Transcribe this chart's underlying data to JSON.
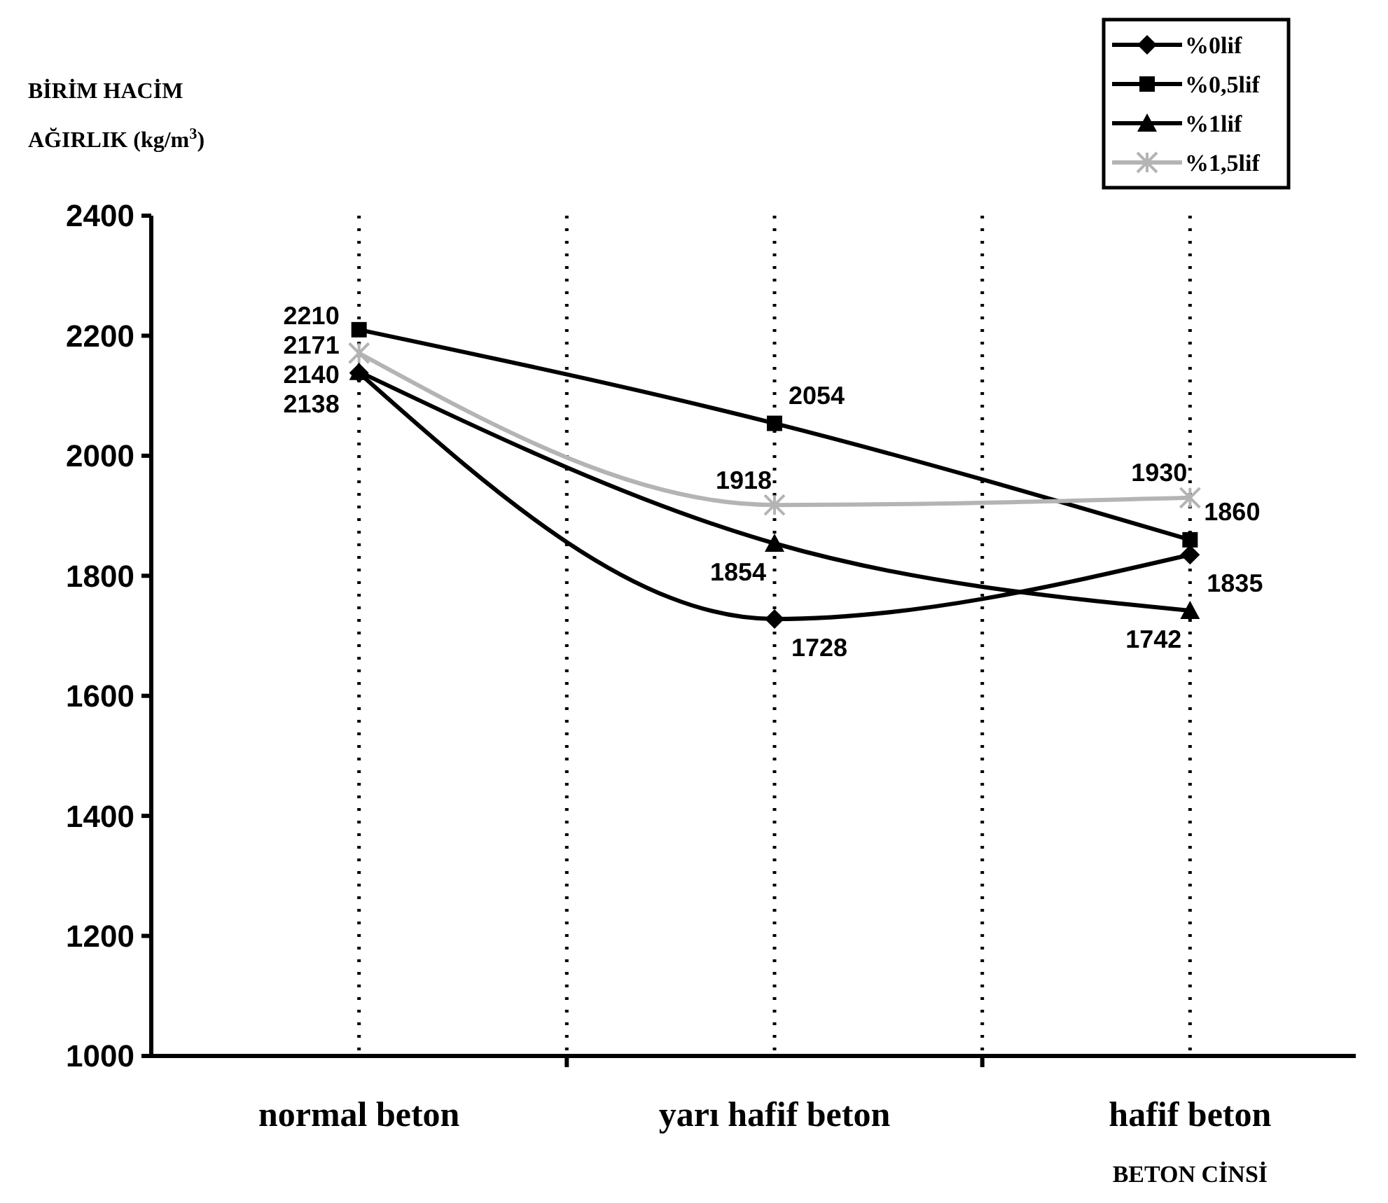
{
  "chart_data": {
    "type": "line",
    "ylabel": "BİRİM HACİM AĞIRLIK (kg/m$^{3}$)",
    "xlabel": "BETON CİNSİ",
    "categories": [
      "normal beton",
      "yarı hafif beton",
      "hafif beton"
    ],
    "series": [
      {
        "name": "%0lif",
        "color": "#000000",
        "marker": "diamond",
        "values": [
          2138,
          1728,
          1835
        ]
      },
      {
        "name": "%0,5lif",
        "color": "#000000",
        "marker": "square",
        "values": [
          2210,
          2054,
          1860
        ]
      },
      {
        "name": "%1lif",
        "color": "#000000",
        "marker": "triangle",
        "values": [
          2140,
          1854,
          1742
        ]
      },
      {
        "name": "%1,5lif",
        "color": "#b4b4b4",
        "marker": "cross",
        "values": [
          2171,
          1918,
          1930
        ]
      }
    ],
    "ylim": [
      1000,
      2400
    ],
    "yticks": [
      1000,
      1200,
      1400,
      1600,
      1800,
      2000,
      2200,
      2400
    ],
    "grid": "x",
    "legend": "top right",
    "data_labels": true,
    "line_style": "solid"
  }
}
